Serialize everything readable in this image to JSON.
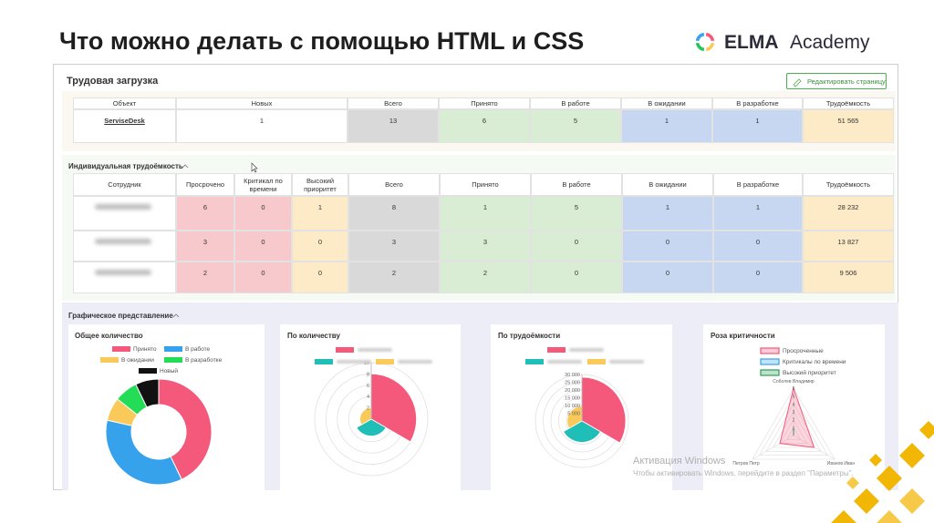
{
  "slide": {
    "title": "Что можно делать с помощью HTML и CSS",
    "logo_brand": "ELMA",
    "logo_suffix": "Academy"
  },
  "app": {
    "title": "Трудовая загрузка",
    "edit_button": "Редактировать страницу",
    "workload_table": {
      "columns": [
        "Объект",
        "Новых",
        "Всего",
        "Принято",
        "В работе",
        "В ожидании",
        "В разработке",
        "Трудоёмкость"
      ],
      "rows": [
        [
          "ServiseDesk",
          1,
          13,
          6,
          5,
          1,
          1,
          "51 565"
        ]
      ]
    },
    "individual": {
      "title": "Индивидуальная трудоёмкость",
      "columns": [
        "Сотрудник",
        "Просрочено",
        "Критикал по времени",
        "Высокий приоритет",
        "Всего",
        "Принято",
        "В работе",
        "В ожидании",
        "В разработке",
        "Трудоёмкость"
      ],
      "rows": [
        [
          null,
          6,
          0,
          1,
          8,
          1,
          5,
          1,
          1,
          "28 232"
        ],
        [
          null,
          3,
          0,
          0,
          3,
          3,
          0,
          0,
          0,
          "13 827"
        ],
        [
          null,
          2,
          0,
          0,
          2,
          2,
          0,
          0,
          0,
          "9 506"
        ]
      ]
    },
    "graphics": {
      "title": "Графическое представление",
      "charts": [
        {
          "type": "donut",
          "title": "Общее количество",
          "categories": [
            "Принято",
            "В работе",
            "В ожидании",
            "В разработке",
            "Новый"
          ],
          "values": [
            6,
            5,
            1,
            1,
            1
          ],
          "colors": [
            "#f4587a",
            "#36a2eb",
            "#f9c95a",
            "#22dd55",
            "#111111"
          ]
        },
        {
          "type": "polar",
          "title": "По количеству",
          "values": [
            8,
            3,
            2
          ],
          "colors": [
            "#f4587a",
            "#1fbfb8",
            "#f9c95a"
          ],
          "rlim": [
            0,
            10
          ],
          "rticks": [
            2,
            4,
            6,
            8,
            10
          ]
        },
        {
          "type": "polar",
          "title": "По трудоёмкости",
          "values": [
            28232,
            13827,
            9506
          ],
          "colors": [
            "#f4587a",
            "#1fbfb8",
            "#f9c95a"
          ],
          "rlim": [
            0,
            30000
          ],
          "rticks": [
            {
              "value": 5000,
              "label": "5 000"
            },
            {
              "value": 10000,
              "label": "10 000"
            },
            {
              "value": 15000,
              "label": "15 000"
            },
            {
              "value": 20000,
              "label": "20 000"
            },
            {
              "value": 25000,
              "label": "25 000"
            },
            {
              "value": 30000,
              "label": "30 000"
            }
          ]
        },
        {
          "type": "radar",
          "title": "Роза критичности",
          "categories": [
            "Соболев Владимир",
            "Иванов Иван",
            "Петров Петр"
          ],
          "rlim": [
            0,
            6
          ],
          "rticks": [
            1,
            2,
            3,
            4,
            5,
            6
          ],
          "series": [
            {
              "name": "Просроченные",
              "color": "#f4587a",
              "values": [
                6,
                3,
                2
              ]
            },
            {
              "name": "Критикалы по времени",
              "color": "#36a2eb",
              "values": [
                0,
                0,
                0
              ]
            },
            {
              "name": "Высокий приоритет",
              "color": "#2e9e5b",
              "values": [
                1,
                0,
                0
              ]
            }
          ]
        }
      ]
    }
  },
  "watermark": {
    "title": "Активация Windows",
    "text": "Чтобы активировать Windows, перейдите в раздел \"Параметры\"."
  }
}
